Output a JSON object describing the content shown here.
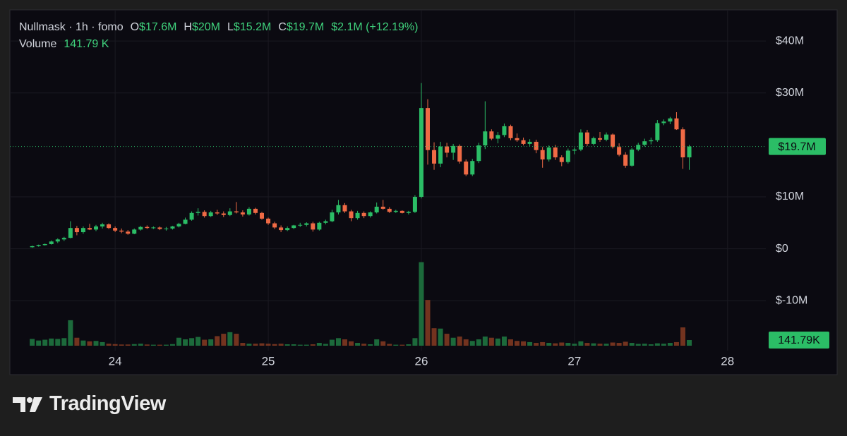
{
  "chart_data": {
    "type": "candlestick",
    "title": "Nullmask · 1h · fomo",
    "ohlc": [
      {
        "label": "O",
        "value": "$17.6M"
      },
      {
        "label": "H",
        "value": "$20M"
      },
      {
        "label": "L",
        "value": "$15.2M"
      },
      {
        "label": "C",
        "value": "$19.7M"
      }
    ],
    "change": "$2.1M (+12.19%)",
    "volume_title": "Volume",
    "volume_text": "141.79 K",
    "x": [
      563,
      564,
      565,
      566,
      567,
      568,
      569,
      570,
      571,
      572,
      573,
      574,
      575,
      576,
      577,
      578,
      579,
      580,
      581,
      582,
      583,
      584,
      585,
      586,
      587,
      588,
      589,
      590,
      591,
      592,
      593,
      594,
      595,
      596,
      597,
      598,
      599,
      600,
      601,
      602,
      603,
      604,
      605,
      606,
      607,
      608,
      609,
      610,
      611,
      612,
      613,
      614,
      615,
      616,
      617,
      618,
      619,
      620,
      621,
      622,
      623,
      624,
      625,
      626,
      627,
      628,
      629,
      630,
      631,
      632,
      633,
      634,
      635,
      636,
      637,
      638,
      639,
      640,
      641,
      642,
      643,
      644,
      645,
      646,
      647,
      648,
      649,
      650,
      651,
      652,
      653,
      654,
      655,
      656,
      657,
      658,
      659,
      660,
      661,
      662,
      663,
      664,
      665,
      666
    ],
    "open": [
      0.3,
      0.5,
      0.7,
      0.9,
      1.4,
      1.8,
      2.1,
      4.0,
      3.2,
      4.0,
      3.7,
      4.3,
      4.7,
      4.0,
      3.5,
      3.3,
      2.9,
      3.7,
      4.2,
      4.0,
      4.1,
      3.8,
      3.9,
      4.3,
      4.8,
      5.6,
      6.9,
      7.1,
      6.3,
      7.0,
      6.8,
      6.5,
      7.2,
      7.0,
      6.6,
      7.7,
      6.9,
      5.8,
      4.9,
      4.1,
      3.6,
      4.0,
      4.5,
      4.6,
      4.9,
      3.7,
      5.0,
      5.3,
      7.0,
      8.4,
      7.2,
      5.9,
      6.9,
      6.3,
      7.0,
      8.1,
      7.7,
      7.1,
      7.3,
      6.9,
      7.1,
      10.0,
      27.1,
      19.0,
      16.4,
      19.7,
      18.5,
      19.8,
      16.8,
      14.3,
      16.9,
      19.9,
      22.6,
      21.2,
      21.9,
      23.6,
      21.3,
      20.9,
      20.2,
      20.6,
      19.0,
      17.2,
      19.5,
      17.6,
      16.7,
      18.9,
      19.1,
      22.4,
      20.2,
      21.3,
      21.0,
      22.0,
      19.6,
      18.1,
      16.0,
      19.1,
      20.0,
      20.7,
      20.9,
      24.2,
      24.5,
      25.1,
      23.0,
      17.6
    ],
    "high": [
      0.6,
      0.8,
      1.0,
      1.6,
      2.0,
      2.3,
      5.3,
      4.4,
      4.3,
      4.8,
      4.6,
      5.0,
      4.9,
      4.3,
      3.9,
      3.6,
      3.9,
      4.4,
      4.5,
      4.3,
      4.3,
      4.2,
      4.4,
      5.0,
      6.0,
      7.2,
      7.8,
      7.4,
      7.3,
      7.5,
      7.2,
      7.8,
      9.0,
      7.4,
      8.0,
      7.9,
      7.1,
      6.0,
      5.2,
      4.5,
      4.3,
      4.6,
      5.0,
      5.1,
      5.2,
      5.2,
      5.6,
      7.5,
      9.4,
      8.8,
      7.5,
      7.3,
      7.2,
      7.2,
      8.9,
      9.4,
      8.0,
      7.5,
      7.4,
      7.3,
      10.3,
      31.9,
      28.8,
      20.5,
      20.6,
      20.4,
      20.2,
      20.1,
      17.2,
      17.3,
      20.4,
      28.4,
      23.0,
      22.5,
      24.1,
      23.9,
      22.2,
      21.4,
      21.1,
      21.0,
      19.6,
      19.9,
      20.0,
      18.0,
      19.3,
      19.5,
      23.0,
      22.9,
      21.6,
      22.5,
      22.4,
      22.2,
      20.3,
      18.6,
      19.4,
      20.4,
      21.2,
      21.4,
      24.8,
      24.9,
      25.4,
      26.3,
      23.4,
      20.0
    ],
    "low": [
      0.2,
      0.4,
      0.6,
      0.8,
      1.1,
      1.5,
      2.0,
      2.6,
      2.9,
      3.6,
      3.4,
      3.9,
      3.8,
      3.2,
      3.0,
      2.7,
      2.8,
      3.5,
      3.8,
      3.8,
      3.6,
      3.5,
      3.7,
      4.1,
      4.7,
      5.4,
      6.4,
      6.0,
      6.1,
      6.5,
      6.1,
      6.3,
      6.8,
      6.2,
      6.4,
      6.6,
      5.6,
      4.6,
      3.8,
      3.2,
      3.4,
      3.8,
      4.2,
      4.3,
      3.3,
      3.5,
      4.7,
      5.1,
      6.6,
      6.9,
      5.3,
      5.6,
      5.9,
      6.0,
      6.8,
      7.5,
      6.9,
      6.9,
      6.8,
      6.6,
      6.9,
      9.7,
      16.2,
      15.2,
      15.7,
      17.6,
      17.1,
      16.4,
      14.0,
      14.0,
      16.5,
      19.2,
      20.9,
      20.3,
      21.5,
      20.9,
      20.6,
      19.9,
      19.8,
      18.4,
      15.6,
      16.8,
      17.1,
      15.9,
      16.4,
      18.2,
      18.8,
      19.8,
      19.9,
      20.6,
      20.7,
      19.3,
      17.8,
      15.6,
      15.8,
      18.8,
      19.7,
      20.1,
      20.6,
      23.8,
      24.0,
      22.9,
      15.4,
      15.2
    ],
    "close": [
      0.5,
      0.7,
      0.9,
      1.4,
      1.8,
      2.1,
      4.0,
      3.2,
      4.0,
      3.7,
      4.3,
      4.7,
      4.0,
      3.5,
      3.3,
      2.9,
      3.7,
      4.2,
      4.0,
      4.1,
      3.8,
      3.9,
      4.3,
      4.8,
      5.6,
      6.9,
      7.1,
      6.3,
      7.0,
      6.8,
      6.5,
      7.2,
      7.0,
      6.6,
      7.7,
      6.9,
      5.8,
      4.9,
      4.1,
      3.6,
      4.0,
      4.5,
      4.6,
      4.9,
      3.7,
      5.0,
      5.3,
      7.0,
      8.4,
      7.2,
      5.9,
      6.9,
      6.3,
      7.0,
      8.1,
      7.7,
      7.1,
      7.3,
      6.9,
      7.1,
      10.0,
      27.1,
      19.0,
      16.4,
      19.7,
      18.5,
      19.8,
      16.8,
      14.3,
      16.9,
      19.9,
      22.6,
      21.2,
      21.9,
      23.6,
      21.3,
      20.9,
      20.2,
      20.6,
      19.0,
      17.2,
      19.5,
      17.6,
      16.7,
      18.9,
      19.1,
      22.4,
      20.2,
      21.3,
      21.0,
      22.0,
      19.6,
      18.1,
      16.0,
      19.1,
      20.0,
      20.7,
      20.9,
      24.2,
      24.5,
      25.1,
      23.0,
      17.6,
      19.7
    ],
    "volume": [
      170,
      130,
      150,
      180,
      170,
      190,
      640,
      200,
      130,
      110,
      120,
      90,
      50,
      40,
      30,
      30,
      40,
      50,
      30,
      25,
      25,
      25,
      40,
      200,
      160,
      190,
      220,
      150,
      160,
      240,
      300,
      340,
      300,
      70,
      50,
      50,
      60,
      50,
      40,
      50,
      35,
      35,
      25,
      25,
      35,
      70,
      45,
      150,
      190,
      160,
      110,
      70,
      50,
      35,
      160,
      110,
      45,
      25,
      25,
      35,
      190,
      2100,
      1150,
      440,
      430,
      300,
      200,
      230,
      160,
      120,
      160,
      230,
      200,
      180,
      230,
      160,
      120,
      110,
      90,
      70,
      90,
      70,
      60,
      80,
      70,
      50,
      110,
      70,
      60,
      50,
      50,
      80,
      70,
      100,
      70,
      45,
      50,
      35,
      60,
      50,
      70,
      90,
      460,
      141.79
    ],
    "xlim": [
      559.5,
      678
    ],
    "xticks": [
      {
        "value": 576,
        "label": "24"
      },
      {
        "value": 600,
        "label": "25"
      },
      {
        "value": 624,
        "label": "26"
      },
      {
        "value": 648,
        "label": "27"
      },
      {
        "value": 672,
        "label": "28"
      }
    ],
    "ylim": [
      -24.1,
      46
    ],
    "yticks": [
      {
        "value": 40,
        "label": "$40M"
      },
      {
        "value": 30,
        "label": "$30M"
      },
      {
        "value": 10,
        "label": "$10M"
      },
      {
        "value": 0,
        "label": "$0"
      },
      {
        "value": -10,
        "label": "$-10M"
      }
    ],
    "volume_lim": [
      0,
      2500
    ],
    "last_price": {
      "value": 19.7,
      "label": "$19.7M"
    },
    "last_volume": {
      "value": 141.79,
      "label": "141.79K"
    },
    "grid": true,
    "up_color": "#2bbd66",
    "down_color": "#ef6a45",
    "volume_up_color": "#1c6a3b",
    "volume_down_color": "#73331f"
  },
  "brand": "TradingView"
}
